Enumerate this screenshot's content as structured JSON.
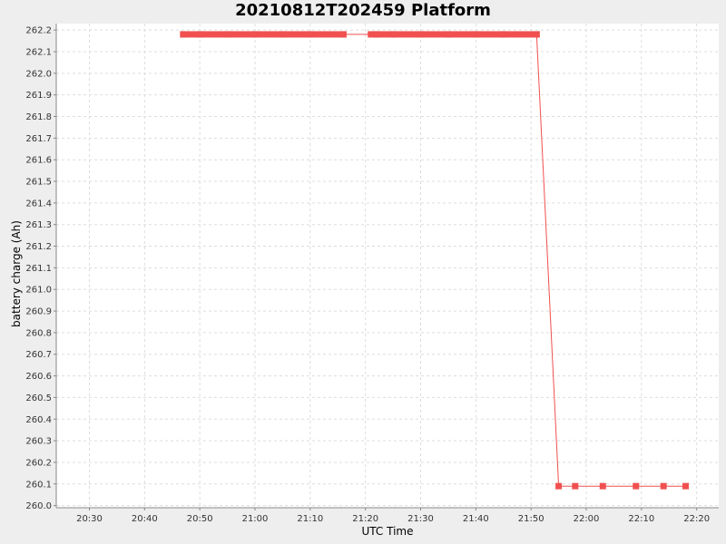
{
  "chart_data": {
    "type": "line",
    "title": "20210812T202459 Platform",
    "xlabel": "UTC Time",
    "ylabel": "battery charge (Ah)",
    "x_ticks": [
      "20:30",
      "20:40",
      "20:50",
      "21:00",
      "21:10",
      "21:20",
      "21:30",
      "21:40",
      "21:50",
      "22:00",
      "22:10",
      "22:20"
    ],
    "y_ticks": [
      "260.0",
      "260.1",
      "260.2",
      "260.3",
      "260.4",
      "260.5",
      "260.6",
      "260.7",
      "260.8",
      "260.9",
      "261.0",
      "261.1",
      "261.2",
      "261.3",
      "261.4",
      "261.5",
      "261.6",
      "261.7",
      "261.8",
      "261.9",
      "262.0",
      "262.1",
      "262.2"
    ],
    "xlim": [
      "20:24",
      "22:24"
    ],
    "ylim": [
      259.99,
      262.23
    ],
    "grid": true,
    "legend": "none",
    "series_color": "#f05050",
    "dense_x_range": [
      [
        "20:47",
        "21:16"
      ],
      [
        "21:22",
        "21:51"
      ]
    ],
    "series": [
      {
        "x": [
          "20:47",
          "20:50",
          "20:55",
          "21:00",
          "21:05",
          "21:10",
          "21:16",
          "21:21",
          "21:22",
          "21:25",
          "21:30",
          "21:35",
          "21:40",
          "21:45",
          "21:51",
          "21:55",
          "21:58",
          "22:03",
          "22:09",
          "22:14",
          "22:18"
        ],
        "values": [
          262.18,
          262.18,
          262.18,
          262.18,
          262.18,
          262.18,
          262.18,
          262.18,
          262.18,
          262.18,
          262.18,
          262.18,
          262.18,
          262.18,
          262.18,
          260.09,
          260.09,
          260.09,
          260.09,
          260.09,
          260.09
        ]
      }
    ]
  }
}
